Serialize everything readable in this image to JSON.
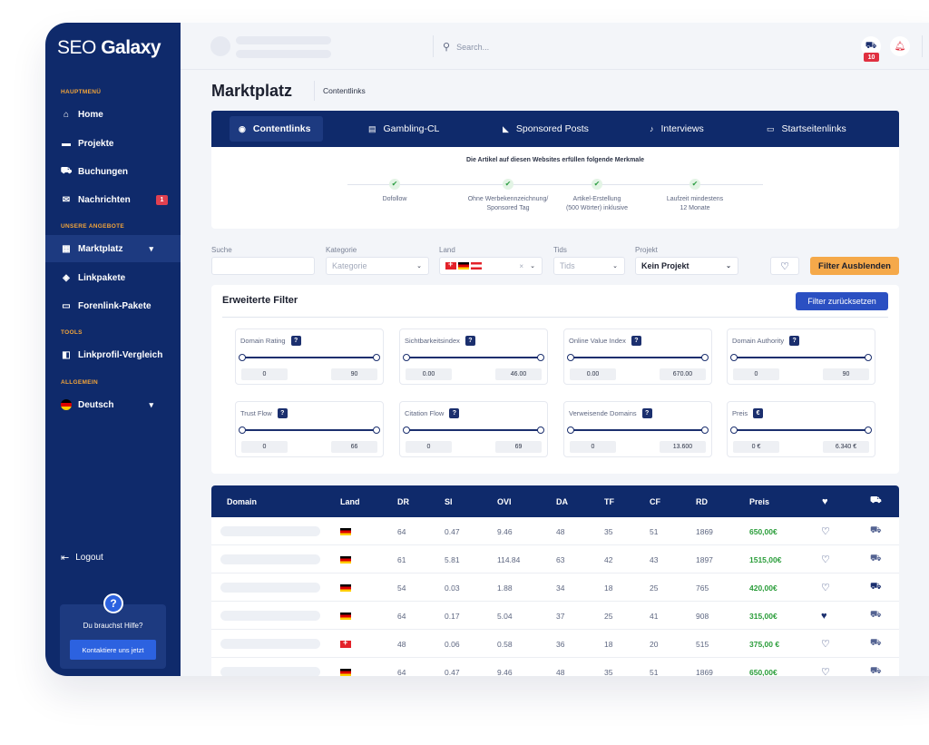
{
  "brand": {
    "logo_light": "SEO",
    "logo_bold": "Galaxy"
  },
  "sidebar": {
    "section_main": "HAUPTMENÜ",
    "section_offers": "UNSERE ANGEBOTE",
    "section_tools": "TOOLS",
    "section_general": "ALLGEMEIN",
    "items": [
      {
        "label": "Home",
        "icon": "home-icon"
      },
      {
        "label": "Projekte",
        "icon": "folder-icon"
      },
      {
        "label": "Buchungen",
        "icon": "cart-icon"
      },
      {
        "label": "Nachrichten",
        "icon": "mail-icon",
        "badge": "1"
      },
      {
        "label": "Marktplatz",
        "icon": "store-icon"
      },
      {
        "label": "Linkpakete",
        "icon": "package-icon"
      },
      {
        "label": "Forenlink-Pakete",
        "icon": "chat-icon"
      },
      {
        "label": "Linkprofil-Vergleich",
        "icon": "compare-icon"
      },
      {
        "label": "Deutsch",
        "icon": "flag-de-icon"
      }
    ],
    "logout": "Logout",
    "help_text": "Du brauchst Hilfe?",
    "help_button": "Kontaktiere uns jetzt"
  },
  "topbar": {
    "search_placeholder": "Search...",
    "cart_badge": "10"
  },
  "page": {
    "title": "Marktplatz",
    "breadcrumb": "Contentlinks"
  },
  "tabs": [
    "Contentlinks",
    "Gambling-CL",
    "Sponsored Posts",
    "Interviews",
    "Startseitenlinks"
  ],
  "features": {
    "heading": "Die Artikel auf diesen Websites erfüllen folgende Merkmale",
    "items": [
      {
        "line1": "Dofollow",
        "line2": ""
      },
      {
        "line1": "Ohne Werbekennzeichnung/",
        "line2": "Sponsored Tag"
      },
      {
        "line1": "Artikel-Erstellung",
        "line2": "(500 Wörter) inklusive"
      },
      {
        "line1": "Laufzeit mindestens",
        "line2": "12 Monate"
      }
    ]
  },
  "filterbar": {
    "search_label": "Suche",
    "category_label": "Kategorie",
    "category_placeholder": "Kategorie",
    "country_label": "Land",
    "tids_label": "Tids",
    "tids_placeholder": "Tids",
    "project_label": "Projekt",
    "project_value": "Kein Projekt",
    "hide_button": "Filter Ausblenden"
  },
  "advanced": {
    "title": "Erweiterte Filter",
    "reset_button": "Filter zurücksetzen",
    "cards": [
      {
        "label": "Domain Rating",
        "tag": "?",
        "min": "0",
        "max": "90"
      },
      {
        "label": "Sichtbarkeitsindex",
        "tag": "?",
        "min": "0.00",
        "max": "46.00"
      },
      {
        "label": "Online Value Index",
        "tag": "?",
        "min": "0.00",
        "max": "670.00"
      },
      {
        "label": "Domain Authority",
        "tag": "?",
        "min": "0",
        "max": "90"
      },
      {
        "label": "Trust Flow",
        "tag": "?",
        "min": "0",
        "max": "66"
      },
      {
        "label": "Citation Flow",
        "tag": "?",
        "min": "0",
        "max": "69"
      },
      {
        "label": "Verweisende Domains",
        "tag": "?",
        "min": "0",
        "max": "13.600"
      },
      {
        "label": "Preis",
        "tag": "€",
        "min": "0 €",
        "max": "6.340 €"
      }
    ]
  },
  "table": {
    "headers": [
      "Domain",
      "Land",
      "DR",
      "SI",
      "OVI",
      "DA",
      "TF",
      "CF",
      "RD",
      "Preis"
    ],
    "rows": [
      {
        "land": "de",
        "dr": "64",
        "si": "0.47",
        "ovi": "9.46",
        "da": "48",
        "tf": "35",
        "cf": "51",
        "rd": "1869",
        "preis": "650,00€",
        "fav": false,
        "incart": false
      },
      {
        "land": "de",
        "dr": "61",
        "si": "5.81",
        "ovi": "114.84",
        "da": "63",
        "tf": "42",
        "cf": "43",
        "rd": "1897",
        "preis": "1515,00€",
        "fav": false,
        "incart": false
      },
      {
        "land": "de",
        "dr": "54",
        "si": "0.03",
        "ovi": "1.88",
        "da": "34",
        "tf": "18",
        "cf": "25",
        "rd": "765",
        "preis": "420,00€",
        "fav": false,
        "incart": true
      },
      {
        "land": "de",
        "dr": "64",
        "si": "0.17",
        "ovi": "5.04",
        "da": "37",
        "tf": "25",
        "cf": "41",
        "rd": "908",
        "preis": "315,00€",
        "fav": true,
        "incart": false
      },
      {
        "land": "ch",
        "dr": "48",
        "si": "0.06",
        "ovi": "0.58",
        "da": "36",
        "tf": "18",
        "cf": "20",
        "rd": "515",
        "preis": "375,00 €",
        "fav": false,
        "incart": false
      },
      {
        "land": "de",
        "dr": "64",
        "si": "0.47",
        "ovi": "9.46",
        "da": "48",
        "tf": "35",
        "cf": "51",
        "rd": "1869",
        "preis": "650,00€",
        "fav": false,
        "incart": false
      }
    ]
  },
  "colors": {
    "navy": "#0f2a6b",
    "accent_orange": "#f5a94a",
    "price_green": "#2a9d3a",
    "button_blue": "#2b50c2"
  }
}
